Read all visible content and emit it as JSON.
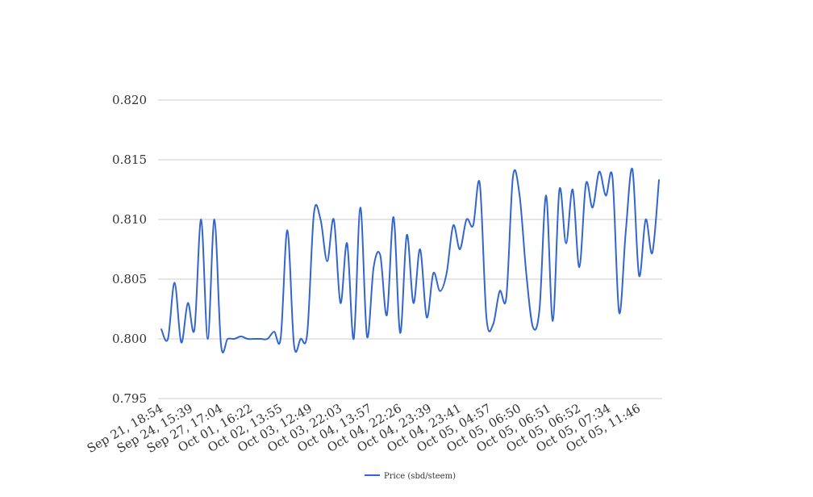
{
  "chart_data": {
    "type": "line",
    "title": "",
    "xlabel": "",
    "ylabel": "",
    "ylim": [
      0.795,
      0.82
    ],
    "yticks": [
      "0.820",
      "0.815",
      "0.810",
      "0.805",
      "0.800",
      "0.795"
    ],
    "x_tick_labels": [
      "Sep 21, 18:54",
      "Sep 24, 15:39",
      "Sep 27, 17:04",
      "Oct 01, 16:22",
      "Oct 02, 13:55",
      "Oct 03, 12:49",
      "Oct 03, 22:03",
      "Oct 04, 13:57",
      "Oct 04, 22:26",
      "Oct 04, 23:39",
      "Oct 04, 23:41",
      "Oct 05, 04:57",
      "Oct 05, 06:50",
      "Oct 05, 06:51",
      "Oct 05, 06:52",
      "Oct 05, 07:34",
      "Oct 05, 11:46"
    ],
    "grid": true,
    "legend_position": "bottom",
    "color": "#3366cc",
    "series": [
      {
        "name": "Price (sbd/steem)",
        "values": [
          0.8008,
          0.8,
          0.8047,
          0.7997,
          0.803,
          0.8008,
          0.81,
          0.8,
          0.81,
          0.7995,
          0.8,
          0.8,
          0.8002,
          0.8,
          0.8,
          0.8,
          0.8,
          0.8006,
          0.8001,
          0.8091,
          0.7995,
          0.8,
          0.8005,
          0.8105,
          0.81,
          0.8065,
          0.81,
          0.803,
          0.808,
          0.8,
          0.811,
          0.8002,
          0.806,
          0.807,
          0.802,
          0.8102,
          0.8005,
          0.8087,
          0.803,
          0.8075,
          0.8018,
          0.8055,
          0.804,
          0.8055,
          0.8095,
          0.8075,
          0.81,
          0.8095,
          0.813,
          0.8018,
          0.8012,
          0.804,
          0.8035,
          0.8136,
          0.812,
          0.8055,
          0.801,
          0.8025,
          0.812,
          0.8015,
          0.8125,
          0.808,
          0.8125,
          0.806,
          0.813,
          0.811,
          0.814,
          0.812,
          0.8135,
          0.8022,
          0.809,
          0.8142,
          0.8053,
          0.81,
          0.8072,
          0.8133
        ]
      }
    ]
  }
}
